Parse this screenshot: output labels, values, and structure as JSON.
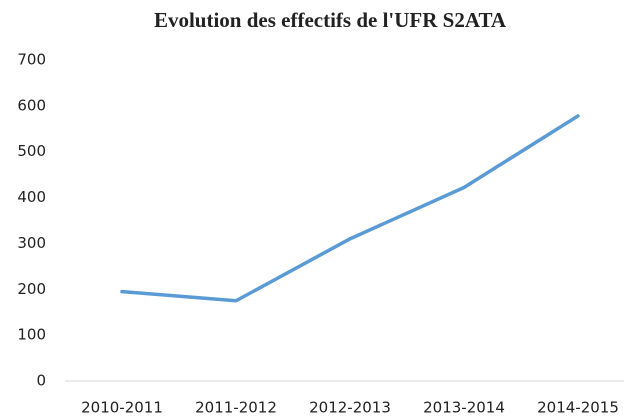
{
  "chart_data": {
    "type": "line",
    "title": "Evolution des effectifs de l'UFR S2ATA",
    "categories": [
      "2010-2011",
      "2011-2012",
      "2012-2013",
      "2013-2014",
      "2014-2015"
    ],
    "values": [
      195,
      175,
      310,
      422,
      578
    ],
    "color": "#5b9bd5",
    "ylim": [
      0,
      700
    ],
    "yticks": [
      0,
      100,
      200,
      300,
      400,
      500,
      600,
      700
    ],
    "grid": false
  }
}
